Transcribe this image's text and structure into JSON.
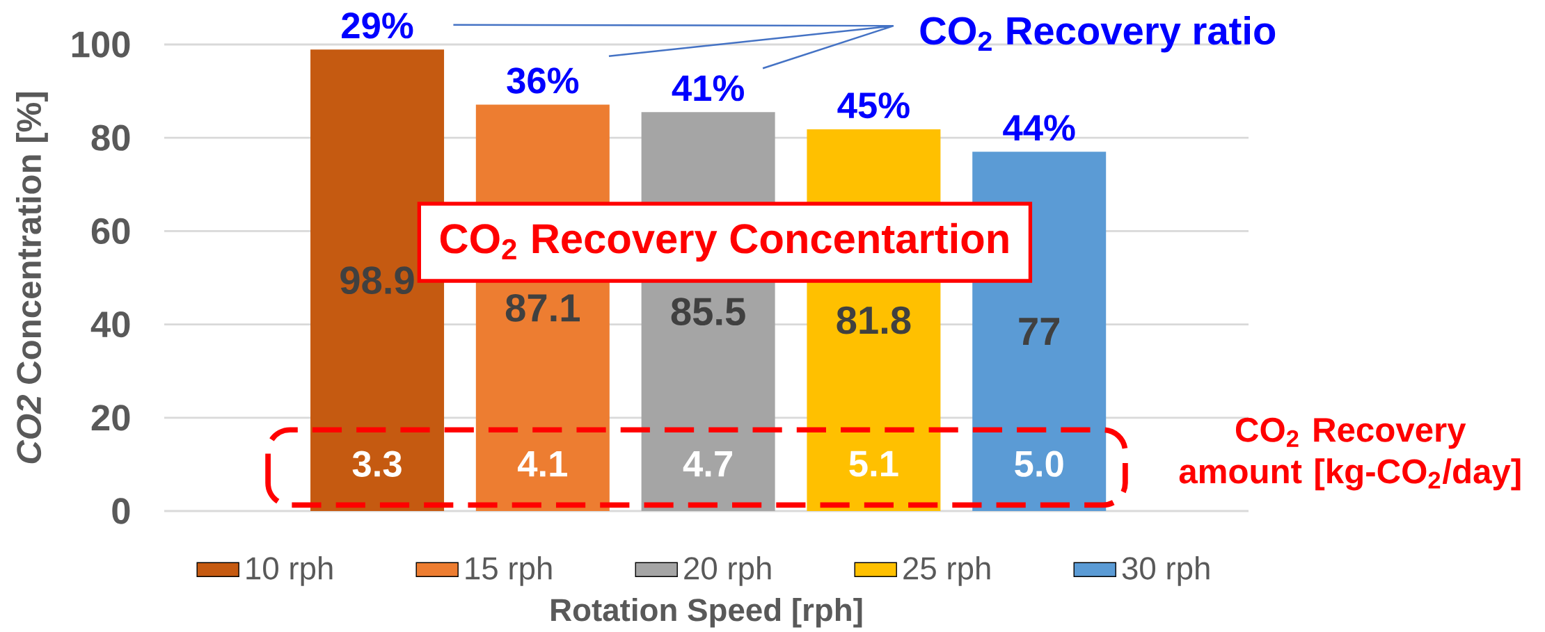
{
  "chart_data": {
    "type": "bar",
    "xlabel": "Rotation Speed [rph]",
    "ylabel": "*CO2* Concentration [%]",
    "categories": [
      null,
      null,
      null,
      null,
      null
    ],
    "series": [
      {
        "name": "10 rph",
        "color": "#c55a11",
        "values": [
          98.9,
          null,
          null,
          null,
          null
        ]
      },
      {
        "name": "15 rph",
        "color": "#ed7d31",
        "values": [
          null,
          87.1,
          null,
          null,
          null
        ]
      },
      {
        "name": "20 rph",
        "color": "#a5a5a5",
        "values": [
          null,
          null,
          85.5,
          null,
          null
        ]
      },
      {
        "name": "25 rph",
        "color": "#ffc000",
        "values": [
          null,
          null,
          null,
          81.8,
          null
        ]
      },
      {
        "name": "30 rph",
        "color": "#5b9bd5",
        "values": [
          null,
          null,
          null,
          null,
          77
        ]
      }
    ],
    "ylim": [
      0,
      100
    ],
    "yticks": [
      0,
      20,
      40,
      60,
      80,
      100
    ],
    "grid": "y",
    "legend": "bottom",
    "data_labels": true,
    "annotations": [
      "CO$_{2}$ Recovery ratio",
      "29%",
      "36%",
      "41%",
      "45%",
      "44%",
      "CO$_{2}$ Recovery Concentartion",
      "CO$_{2}$ Recovery amount [kg-CO$_{2}$/day]",
      "3.3",
      "4.1",
      "4.7",
      "5.1",
      "5.0"
    ]
  }
}
